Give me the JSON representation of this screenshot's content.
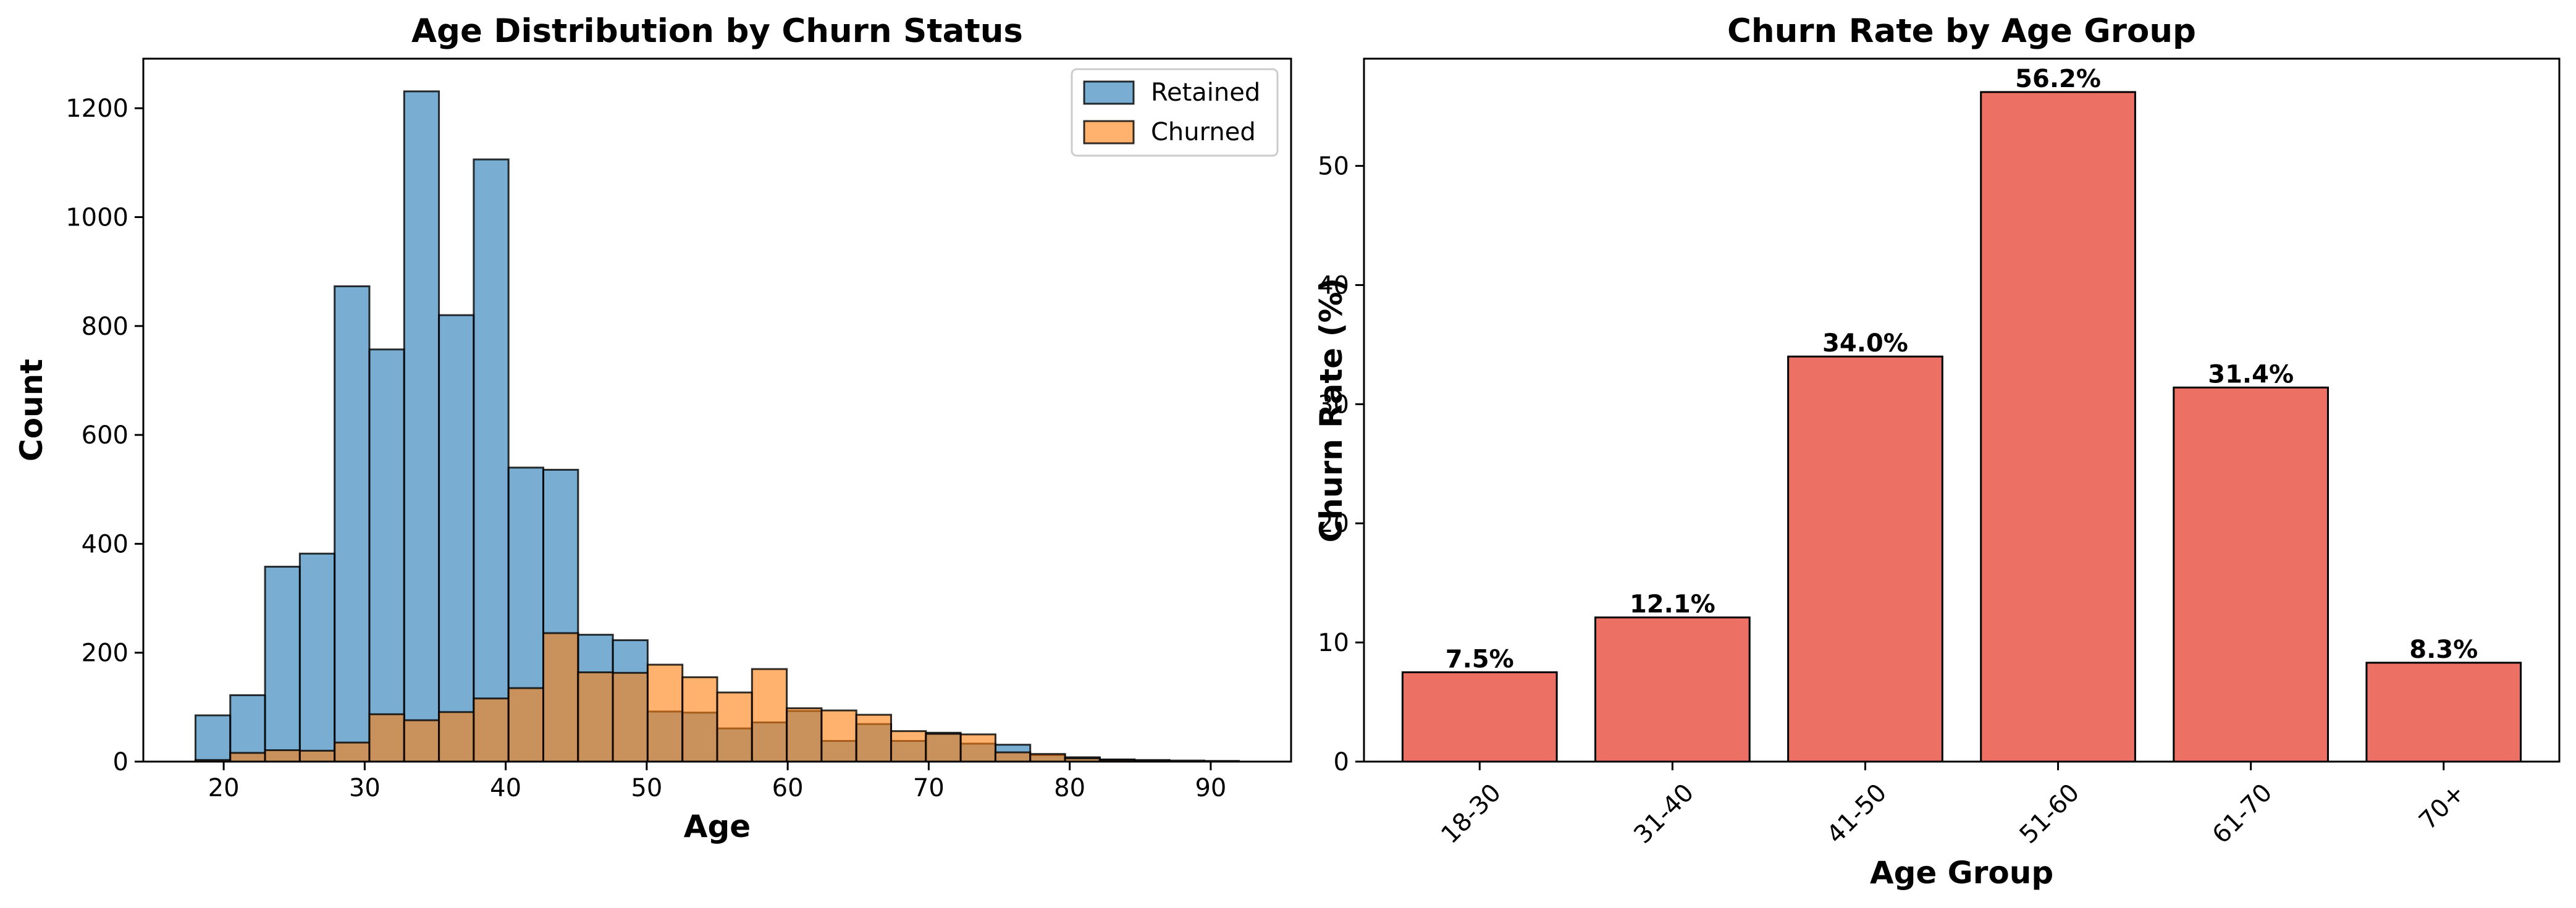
{
  "chart_data": [
    {
      "type": "histogram",
      "title": "Age Distribution by Churn Status",
      "xlabel": "Age",
      "ylabel": "Count",
      "xlim": [
        14.3,
        95.7
      ],
      "ylim": [
        0,
        1291
      ],
      "xticks": [
        20,
        30,
        40,
        50,
        60,
        70,
        80,
        90
      ],
      "yticks": [
        0,
        200,
        400,
        600,
        800,
        1000,
        1200
      ],
      "legend_position": "top-right",
      "grid": false,
      "series": [
        {
          "name": "Retained",
          "color": "#1f77b4",
          "bin_start": 18,
          "bin_width": 2.4667,
          "counts": [
            85,
            122,
            358,
            382,
            873,
            757,
            1231,
            820,
            1106,
            540,
            536,
            233,
            223,
            92,
            90,
            61,
            72,
            93,
            38,
            69,
            38,
            53,
            33,
            31,
            12,
            8,
            4,
            3,
            2,
            1
          ]
        },
        {
          "name": "Churned",
          "color": "#ff7f0e",
          "bin_start": 18,
          "bin_width": 2.4667,
          "counts": [
            3,
            16,
            21,
            20,
            35,
            87,
            76,
            91,
            116,
            135,
            236,
            164,
            163,
            178,
            155,
            127,
            170,
            98,
            94,
            86,
            56,
            51,
            50,
            17,
            14,
            6,
            3,
            1,
            0,
            1
          ]
        }
      ]
    },
    {
      "type": "bar",
      "title": "Churn Rate by Age Group",
      "xlabel": "Age Group",
      "ylabel": "Churn Rate (%)",
      "categories": [
        "18-30",
        "31-40",
        "41-50",
        "51-60",
        "61-70",
        "70+"
      ],
      "values": [
        7.5,
        12.1,
        34.0,
        56.2,
        31.4,
        8.3
      ],
      "data_labels": [
        "7.5%",
        "12.1%",
        "34.0%",
        "56.2%",
        "31.4%",
        "8.3%"
      ],
      "ylim": [
        0,
        59.0
      ],
      "yticks": [
        0,
        10,
        20,
        30,
        40,
        50
      ],
      "color": "#e74c3c",
      "grid": false
    }
  ]
}
